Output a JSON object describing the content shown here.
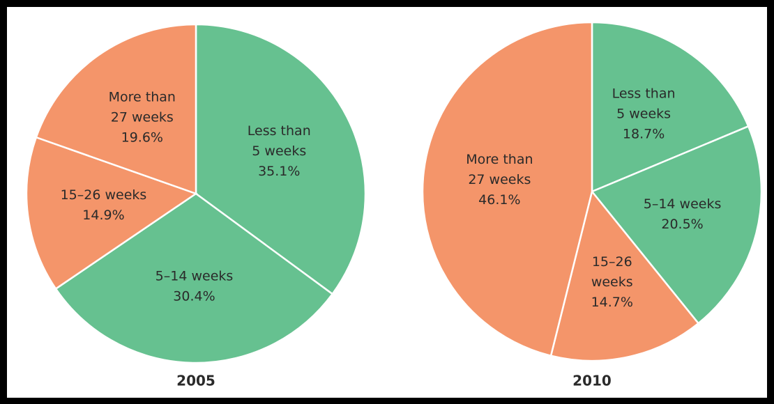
{
  "chart_data": [
    {
      "type": "pie",
      "title": "2005",
      "categories": [
        [
          "Less than",
          "5 weeks"
        ],
        [
          "5–14 weeks"
        ],
        [
          "15–26 weeks"
        ],
        [
          "More than",
          "27 weeks"
        ]
      ],
      "values": [
        35.1,
        30.4,
        14.9,
        19.6
      ],
      "value_labels": [
        "35.1%",
        "30.4%",
        "14.9%",
        "19.6%"
      ],
      "colors": [
        "#66c190",
        "#66c190",
        "#f4956a",
        "#f4956a"
      ]
    },
    {
      "type": "pie",
      "title": "2010",
      "categories": [
        [
          "Less than",
          "5 weeks"
        ],
        [
          "5–14 weeks"
        ],
        [
          "15–26",
          "weeks"
        ],
        [
          "More than",
          "27 weeks"
        ]
      ],
      "values": [
        18.7,
        20.5,
        14.7,
        46.1
      ],
      "value_labels": [
        "18.7%",
        "20.5%",
        "14.7%",
        "46.1%"
      ],
      "colors": [
        "#66c190",
        "#66c190",
        "#f4956a",
        "#f4956a"
      ]
    }
  ]
}
